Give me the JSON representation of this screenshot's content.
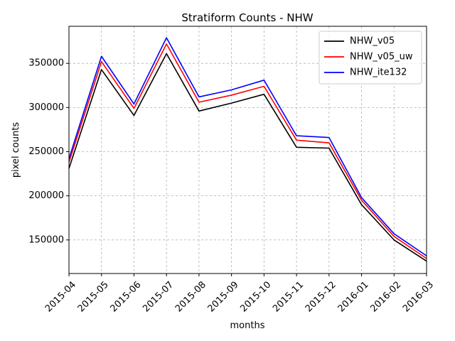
{
  "chart_data": {
    "type": "line",
    "title": "Stratiform Counts - NHW",
    "xlabel": "months",
    "ylabel": "pixel counts",
    "categories": [
      "2015-04",
      "2015-05",
      "2015-06",
      "2015-07",
      "2015-08",
      "2015-09",
      "2015-10",
      "2015-11",
      "2015-12",
      "2016-01",
      "2016-02",
      "2016-03"
    ],
    "ylim": [
      112000,
      392000
    ],
    "yticks": [
      150000,
      200000,
      250000,
      300000,
      350000
    ],
    "ytick_labels": [
      "150000",
      "200000",
      "250000",
      "300000",
      "350000"
    ],
    "grid": true,
    "legend_position": "top-right",
    "series": [
      {
        "name": "NHW_v05",
        "color": "#000000",
        "values": [
          231000,
          343000,
          291000,
          361000,
          296000,
          305000,
          315000,
          255000,
          254000,
          190000,
          150000,
          126000
        ]
      },
      {
        "name": "NHW_v05_uw",
        "color": "#ff0000",
        "values": [
          238000,
          352000,
          299000,
          372000,
          306000,
          314000,
          324000,
          263000,
          260000,
          195000,
          154000,
          129000
        ]
      },
      {
        "name": "NHW_ite132",
        "color": "#0000ff",
        "values": [
          242000,
          358000,
          304000,
          379000,
          312000,
          320000,
          331000,
          268000,
          266000,
          198000,
          157000,
          132000
        ]
      }
    ]
  }
}
